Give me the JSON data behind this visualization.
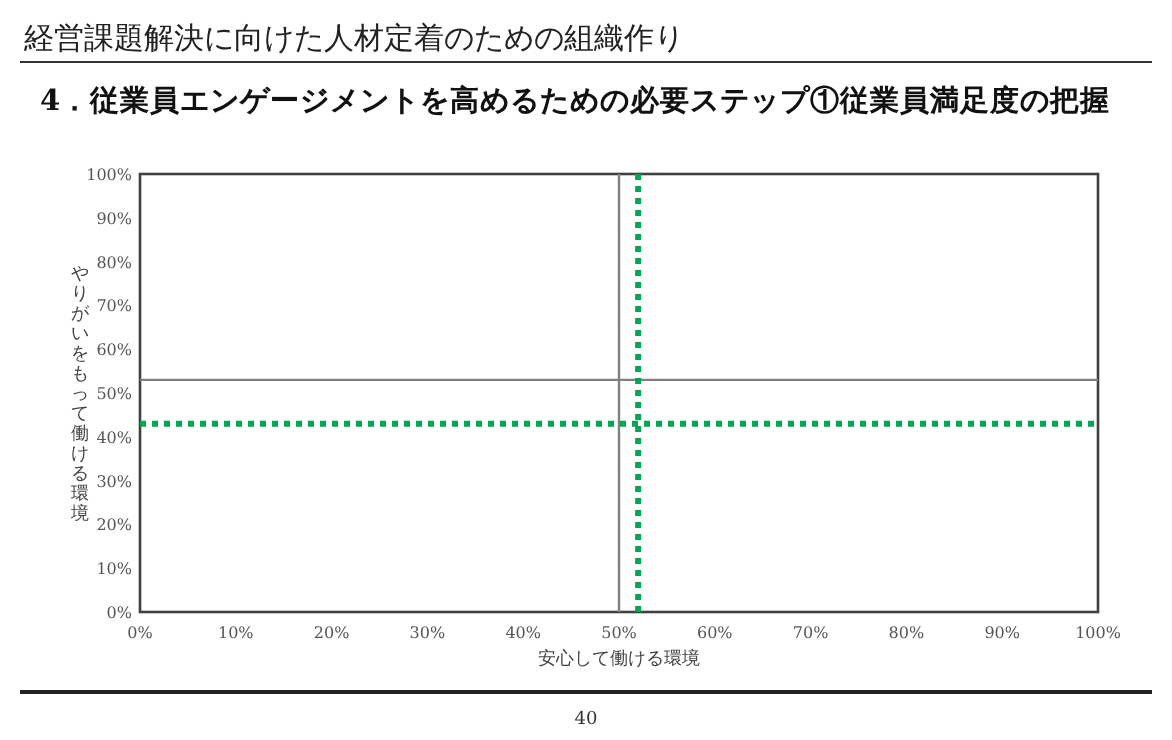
{
  "chart_data": {
    "type": "scatter",
    "title": "経営課題解決に向けた人材定着のための組織作り",
    "subtitle": "4．従業員エンゲージメントを高めるための必要ステップ①従業員満足度の把握",
    "xlabel": "安心して働ける環境",
    "ylabel": "やりがいをもって働ける環境",
    "xlim": [
      0,
      100
    ],
    "ylim": [
      0,
      100
    ],
    "xticks": [
      {
        "value": 0,
        "label": "0%"
      },
      {
        "value": 10,
        "label": "10%"
      },
      {
        "value": 20,
        "label": "20%"
      },
      {
        "value": 30,
        "label": "30%"
      },
      {
        "value": 40,
        "label": "40%"
      },
      {
        "value": 50,
        "label": "50%"
      },
      {
        "value": 60,
        "label": "60%"
      },
      {
        "value": 70,
        "label": "70%"
      },
      {
        "value": 80,
        "label": "80%"
      },
      {
        "value": 90,
        "label": "90%"
      },
      {
        "value": 100,
        "label": "100%"
      }
    ],
    "yticks": [
      {
        "value": 0,
        "label": "0%"
      },
      {
        "value": 10,
        "label": "10%"
      },
      {
        "value": 20,
        "label": "20%"
      },
      {
        "value": 30,
        "label": "30%"
      },
      {
        "value": 40,
        "label": "40%"
      },
      {
        "value": 50,
        "label": "50%"
      },
      {
        "value": 60,
        "label": "60%"
      },
      {
        "value": 70,
        "label": "70%"
      },
      {
        "value": 80,
        "label": "80%"
      },
      {
        "value": 90,
        "label": "90%"
      },
      {
        "value": 100,
        "label": "100%"
      }
    ],
    "ref_lines": [
      {
        "axis": "x",
        "value": 50,
        "color": "#808080",
        "line_style": "solid"
      },
      {
        "axis": "y",
        "value": 53,
        "color": "#808080",
        "line_style": "solid"
      },
      {
        "axis": "x",
        "value": 52,
        "color": "#00a651",
        "line_style": "dotted"
      },
      {
        "axis": "y",
        "value": 43,
        "color": "#00a651",
        "line_style": "dotted"
      }
    ],
    "annotations": [
      "40"
    ]
  }
}
